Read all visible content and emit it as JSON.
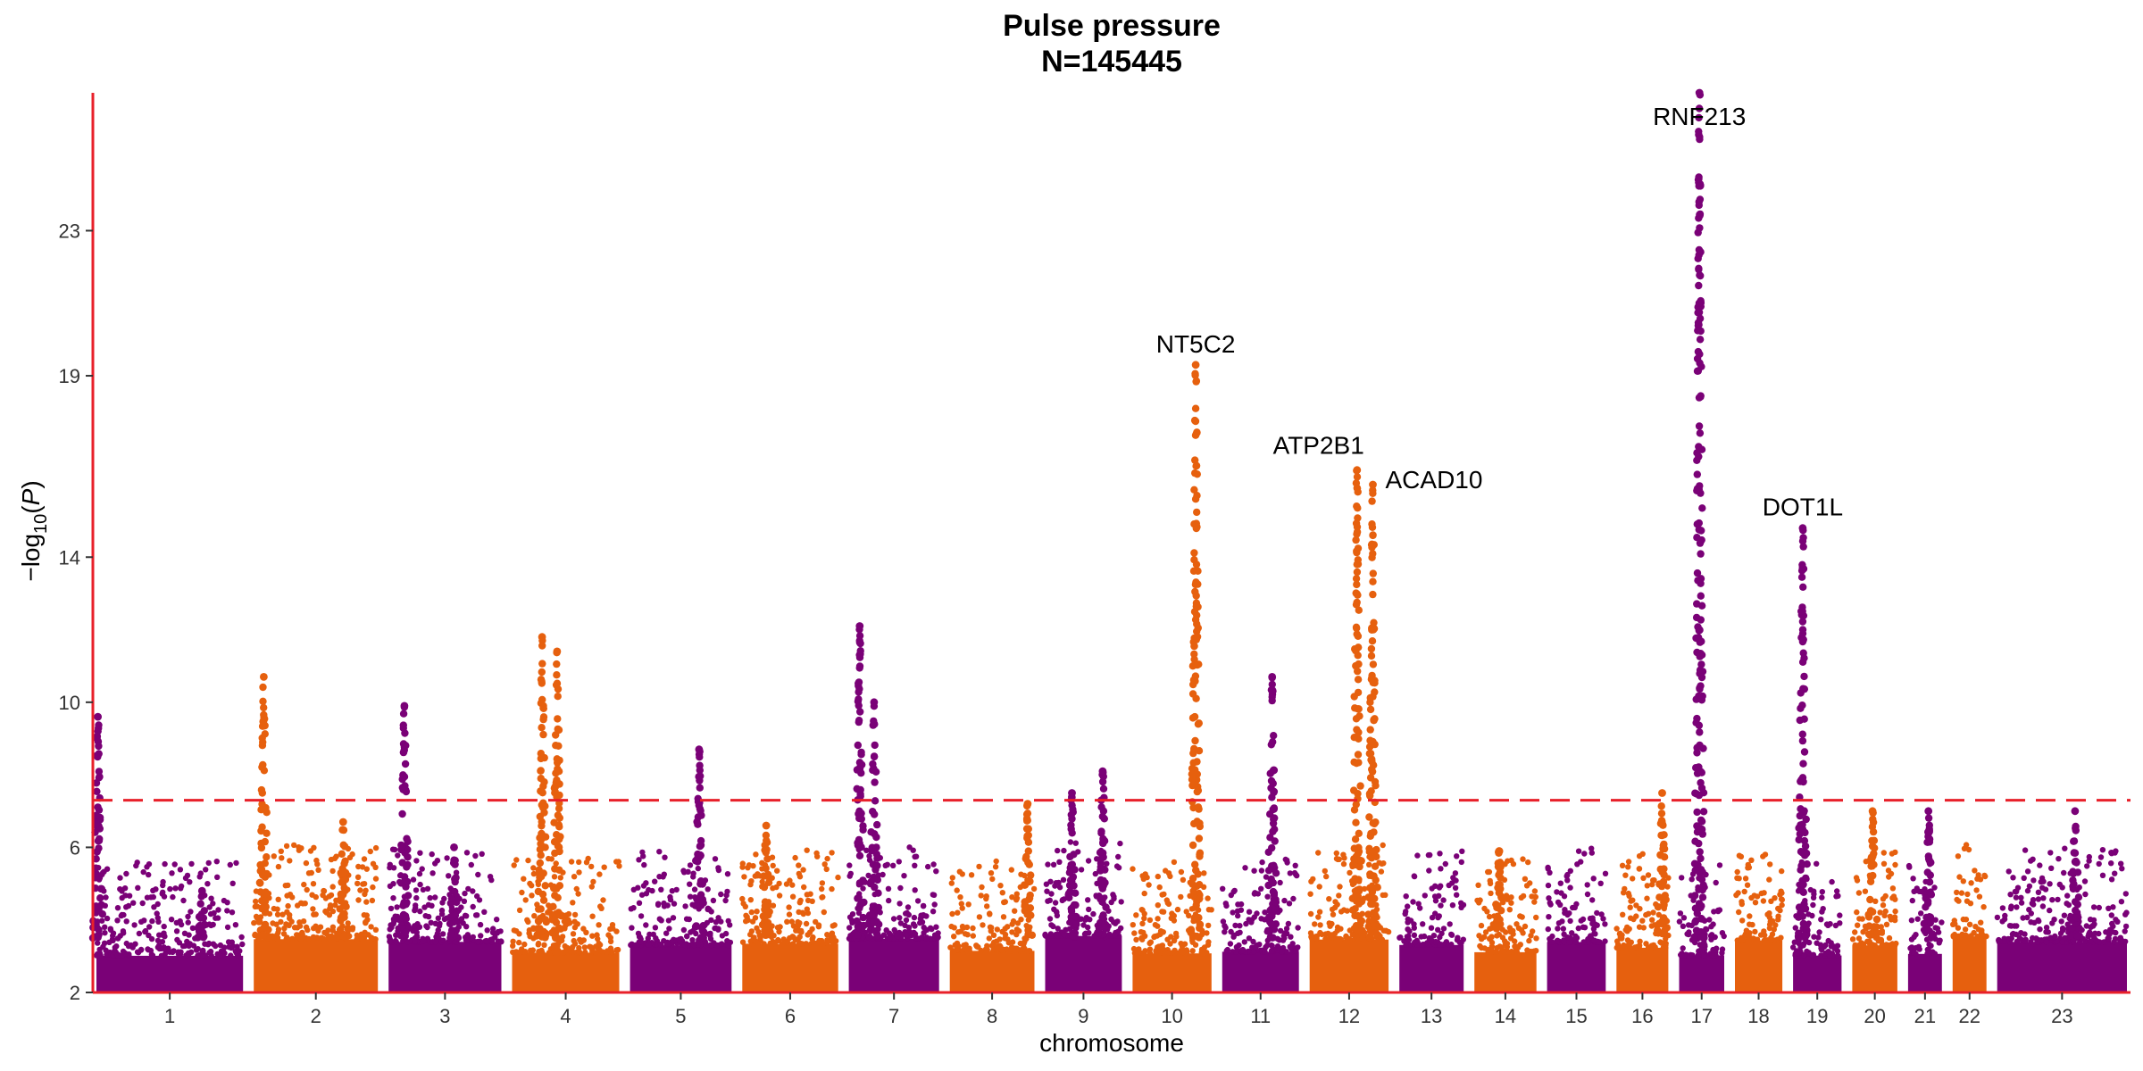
{
  "chart_data": {
    "type": "scatter",
    "subtype": "manhattan",
    "title": "Pulse pressure",
    "subtitle": "N=145445",
    "xlabel": "chromosome",
    "ylabel_parts": {
      "prefix": "−log",
      "sub": "10",
      "open": "(",
      "var": "P",
      "close": ")"
    },
    "ylim": [
      2,
      26.8
    ],
    "yticks": [
      2,
      6,
      10,
      14,
      19,
      23
    ],
    "threshold": 7.3,
    "colors": {
      "odd": "#7a0177",
      "even": "#e6600e",
      "axis": "#e8202a",
      "threshold": "#e8202a"
    },
    "grid": false,
    "legend": "none",
    "chromosomes": [
      "1",
      "2",
      "3",
      "4",
      "5",
      "6",
      "7",
      "8",
      "9",
      "10",
      "11",
      "12",
      "13",
      "14",
      "15",
      "16",
      "17",
      "18",
      "19",
      "20",
      "21",
      "22",
      "23"
    ],
    "peaks": [
      {
        "chr": "1",
        "pos": 0.01,
        "max": 9.6
      },
      {
        "chr": "1",
        "pos": 0.72,
        "max": 4.8
      },
      {
        "chr": "2",
        "pos": 0.08,
        "max": 10.7
      },
      {
        "chr": "2",
        "pos": 0.72,
        "max": 6.7
      },
      {
        "chr": "3",
        "pos": 0.14,
        "max": 9.9
      },
      {
        "chr": "3",
        "pos": 0.58,
        "max": 6.0
      },
      {
        "chr": "4",
        "pos": 0.28,
        "max": 11.8
      },
      {
        "chr": "4",
        "pos": 0.42,
        "max": 11.4
      },
      {
        "chr": "5",
        "pos": 0.68,
        "max": 8.7
      },
      {
        "chr": "6",
        "pos": 0.25,
        "max": 6.6
      },
      {
        "chr": "7",
        "pos": 0.12,
        "max": 12.1
      },
      {
        "chr": "7",
        "pos": 0.28,
        "max": 10.0
      },
      {
        "chr": "8",
        "pos": 0.92,
        "max": 7.2
      },
      {
        "chr": "9",
        "pos": 0.35,
        "max": 7.5
      },
      {
        "chr": "9",
        "pos": 0.75,
        "max": 8.1
      },
      {
        "chr": "10",
        "pos": 0.8,
        "max": 19.3
      },
      {
        "chr": "11",
        "pos": 0.65,
        "max": 10.7
      },
      {
        "chr": "12",
        "pos": 0.6,
        "max": 16.4
      },
      {
        "chr": "12",
        "pos": 0.8,
        "max": 16.0
      },
      {
        "chr": "14",
        "pos": 0.4,
        "max": 5.9
      },
      {
        "chr": "16",
        "pos": 0.88,
        "max": 7.5
      },
      {
        "chr": "17",
        "pos": 0.45,
        "max": 26.8
      },
      {
        "chr": "19",
        "pos": 0.2,
        "max": 14.8
      },
      {
        "chr": "20",
        "pos": 0.45,
        "max": 7.0
      },
      {
        "chr": "21",
        "pos": 0.6,
        "max": 7.0
      },
      {
        "chr": "23",
        "pos": 0.6,
        "max": 7.0
      }
    ],
    "annotations": [
      {
        "text": "RNF213",
        "chr": "17",
        "pos": 0.45,
        "y": 26.8,
        "anchor": "middle"
      },
      {
        "text": "NT5C2",
        "chr": "10",
        "pos": 0.8,
        "y": 19.3,
        "anchor": "middle"
      },
      {
        "text": "ATP2B1",
        "chr": "12",
        "pos": 0.6,
        "y": 16.4,
        "anchor": "end"
      },
      {
        "text": "ACAD10",
        "chr": "12",
        "pos": 0.8,
        "y": 16.0,
        "anchor": "start"
      },
      {
        "text": "DOT1L",
        "chr": "19",
        "pos": 0.2,
        "y": 14.8,
        "anchor": "middle"
      }
    ]
  }
}
